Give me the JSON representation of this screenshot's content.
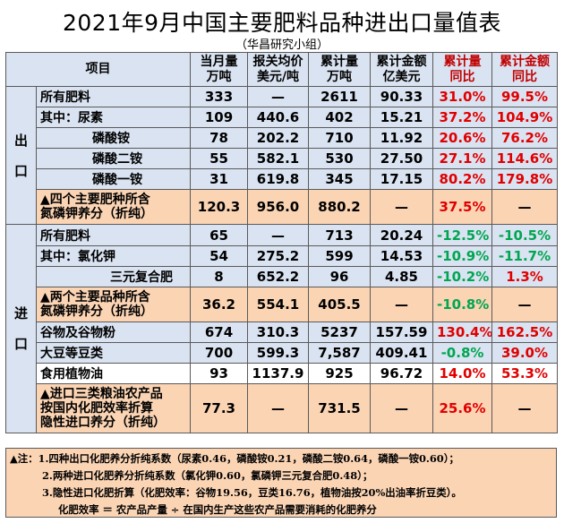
{
  "title": "2021年9月中国主要肥料品种进出口量值表",
  "subtitle": "（华昌研究小组）",
  "header": {
    "item": "项目",
    "monthly": [
      "当月量",
      "万吨"
    ],
    "avg_price": [
      "报关均价",
      "美元/吨"
    ],
    "cum_qty": [
      "累计量",
      "万吨"
    ],
    "cum_amt": [
      "累计金额",
      "亿美元"
    ],
    "cum_qty_yoy": [
      "累计量",
      "同比"
    ],
    "cum_amt_yoy": [
      "累计金额",
      "同比"
    ]
  },
  "sections": {
    "export": [
      "出",
      "口"
    ],
    "import": [
      "进",
      "口"
    ]
  },
  "export_rows": [
    {
      "name": "所有肥料",
      "monthly": "333",
      "price": "—",
      "cum_qty": "2611",
      "cum_amt": "90.33",
      "qty_yoy": "31.0%",
      "amt_yoy": "99.5%"
    },
    {
      "name": "其中：尿素",
      "monthly": "109",
      "price": "440.6",
      "cum_qty": "402",
      "cum_amt": "15.21",
      "qty_yoy": "37.2%",
      "amt_yoy": "104.9%"
    },
    {
      "name": "磷酸铵",
      "monthly": "78",
      "price": "202.2",
      "cum_qty": "710",
      "cum_amt": "11.92",
      "qty_yoy": "20.6%",
      "amt_yoy": "76.2%"
    },
    {
      "name": "磷酸二铵",
      "monthly": "55",
      "price": "582.1",
      "cum_qty": "530",
      "cum_amt": "27.50",
      "qty_yoy": "27.1%",
      "amt_yoy": "114.6%"
    },
    {
      "name": "磷酸一铵",
      "monthly": "31",
      "price": "619.8",
      "cum_qty": "345",
      "cum_amt": "17.15",
      "qty_yoy": "80.2%",
      "amt_yoy": "179.8%"
    },
    {
      "name1": "▲四个主要肥种所含",
      "name2": "氮磷钾养分（折纯）",
      "monthly": "120.3",
      "price": "956.0",
      "cum_qty": "880.2",
      "cum_amt": "—",
      "qty_yoy": "37.5%",
      "amt_yoy": "—"
    }
  ],
  "import_rows": [
    {
      "name": "所有肥料",
      "monthly": "65",
      "price": "—",
      "cum_qty": "713",
      "cum_amt": "20.24",
      "qty_yoy": "-12.5%",
      "amt_yoy": "-10.5%"
    },
    {
      "name": "其中：氯化钾",
      "monthly": "54",
      "price": "275.2",
      "cum_qty": "599",
      "cum_amt": "14.53",
      "qty_yoy": "-10.9%",
      "amt_yoy": "-11.7%"
    },
    {
      "name": "三元复合肥",
      "monthly": "8",
      "price": "652.2",
      "cum_qty": "96",
      "cum_amt": "4.85",
      "qty_yoy": "-10.2%",
      "amt_yoy": "1.3%"
    },
    {
      "name1": "▲两个主要品种所含",
      "name2": "氮磷钾养分（折纯）",
      "monthly": "36.2",
      "price": "554.1",
      "cum_qty": "405.5",
      "cum_amt": "—",
      "qty_yoy": "-10.8%",
      "amt_yoy": "—"
    },
    {
      "name": "谷物及谷物粉",
      "monthly": "674",
      "price": "310.3",
      "cum_qty": "5237",
      "cum_amt": "157.59",
      "qty_yoy": "130.4%",
      "amt_yoy": "162.5%"
    },
    {
      "name": "大豆等豆类",
      "monthly": "700",
      "price": "599.3",
      "cum_qty": "7,587",
      "cum_amt": "409.41",
      "qty_yoy": "-0.8%",
      "amt_yoy": "39.0%"
    },
    {
      "name": "食用植物油",
      "monthly": "93",
      "price": "1137.9",
      "cum_qty": "925",
      "cum_amt": "96.72",
      "qty_yoy": "14.0%",
      "amt_yoy": "53.3%"
    },
    {
      "name1": "▲进口三类粮油农产品",
      "name2": "按国内化肥效率折算",
      "name3": "隐性进口养分（折纯）",
      "monthly": "77.3",
      "price": "—",
      "cum_qty": "731.5",
      "cum_amt": "—",
      "qty_yoy": "25.6%",
      "amt_yoy": "—"
    }
  ],
  "notes": [
    "▲注：1.四种出口化肥养分折纯系数（尿素0.46，磷酸铵0.21，磷酸二铵0.64，磷酸一铵0.60）；",
    "2.两种进口化肥养分折纯系数（氯化钾0.60，氯磷钾三元复合肥0.48）；",
    "3.隐性进口化肥折算（化肥效率：谷物19.56，豆类16.76，植物油按20%出油率折豆类）。",
    "化肥效率 ＝ 农产品产量 ÷ 在国内生产这些农产品需要消耗的化肥养分"
  ],
  "colors": {
    "header_bg": "#dae3f1",
    "highlight_bg": "#fbd4b4",
    "positive": "#e00000",
    "negative": "#00a651"
  }
}
